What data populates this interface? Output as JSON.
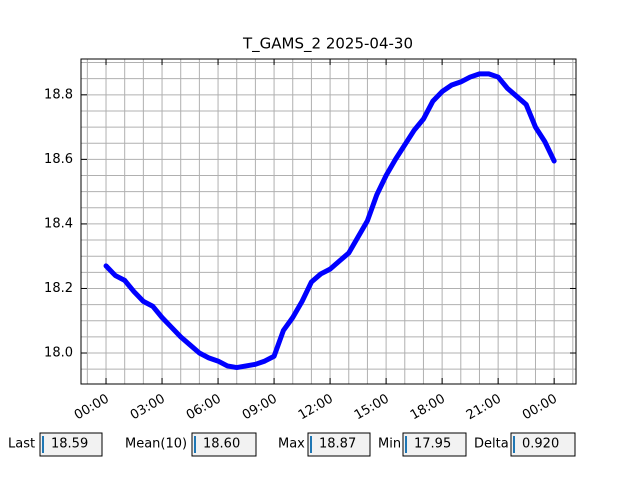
{
  "chart_data": {
    "type": "line",
    "title": "T_GAMS_2 2025-04-30",
    "x": [
      0,
      0.5,
      1,
      1.5,
      2,
      2.5,
      3,
      3.5,
      4,
      4.5,
      5,
      5.5,
      6,
      6.5,
      7,
      7.5,
      8,
      8.5,
      9,
      9.5,
      10,
      10.5,
      11,
      11.5,
      12,
      12.5,
      13,
      13.5,
      14,
      14.5,
      15,
      15.5,
      16,
      16.5,
      17,
      17.5,
      18,
      18.5,
      19,
      19.5,
      20,
      20.5,
      21,
      21.5,
      22,
      22.5,
      23,
      23.5,
      24
    ],
    "series": [
      {
        "color": "#0000ff",
        "values": [
          18.27,
          18.24,
          18.225,
          18.19,
          18.16,
          18.145,
          18.11,
          18.08,
          18.05,
          18.025,
          18.0,
          17.985,
          17.975,
          17.96,
          17.955,
          17.96,
          17.965,
          17.975,
          17.99,
          18.07,
          18.11,
          18.16,
          18.22,
          18.245,
          18.26,
          18.285,
          18.31,
          18.36,
          18.41,
          18.49,
          18.55,
          18.6,
          18.645,
          18.69,
          18.725,
          18.78,
          18.81,
          18.83,
          18.84,
          18.855,
          18.865,
          18.865,
          18.855,
          18.82,
          18.795,
          18.77,
          18.7,
          18.655,
          18.595
        ]
      }
    ],
    "xlim": [
      -1.34,
      25.17
    ],
    "xticks": [
      {
        "value": 0,
        "label": "00:00"
      },
      {
        "value": 3,
        "label": "03:00"
      },
      {
        "value": 6,
        "label": "06:00"
      },
      {
        "value": 9,
        "label": "09:00"
      },
      {
        "value": 12,
        "label": "12:00"
      },
      {
        "value": 15,
        "label": "15:00"
      },
      {
        "value": 18,
        "label": "18:00"
      },
      {
        "value": 21,
        "label": "21:00"
      },
      {
        "value": 24,
        "label": "00:00"
      }
    ],
    "xminorticks": [
      -1,
      1,
      2,
      4,
      5,
      7,
      8,
      10,
      11,
      13,
      14,
      16,
      17,
      19,
      20,
      22,
      23,
      25
    ],
    "ylim": [
      17.904,
      18.911
    ],
    "yticks": [
      {
        "value": 18.0,
        "label": "18.0"
      },
      18.2,
      18.4,
      18.6,
      18.8
    ],
    "yminorticks": [
      17.95,
      18.05,
      18.1,
      18.15,
      18.25,
      18.3,
      18.35,
      18.45,
      18.5,
      18.55,
      18.65,
      18.7,
      18.75,
      18.85,
      18.9
    ],
    "grid": true
  },
  "widgets": [
    {
      "label": "Last",
      "value": "18.59"
    },
    {
      "label": "Mean(10)",
      "value": "18.60"
    },
    {
      "label": "Max",
      "value": "18.87"
    },
    {
      "label": "Min",
      "value": "17.95"
    },
    {
      "label": "Delta",
      "value": "0.920"
    }
  ]
}
